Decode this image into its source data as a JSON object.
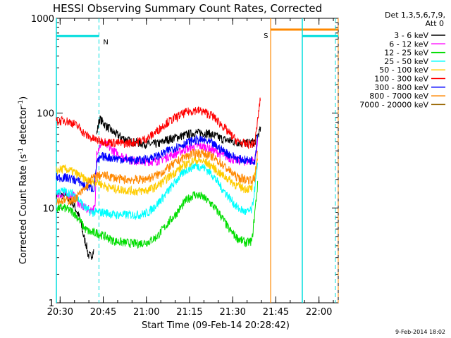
{
  "chart_data": {
    "type": "line",
    "title": "HESSI Observing Summary Count Rates, Corrected",
    "xlabel": "Start Time (09-Feb-14 20:28:42)",
    "ylabel_main": "Corrected Count Rate (s",
    "ylabel_sup1": "-1",
    "ylabel_mid": " detector",
    "ylabel_sup2": "-1",
    "ylabel_end": ")",
    "yscale": "log",
    "ylim": [
      1,
      1000
    ],
    "xlim_minutes": [
      0,
      98
    ],
    "x_unit": "minutes since 20:28:42",
    "x_ticks": [
      {
        "label": "20:30",
        "m": 1.3
      },
      {
        "label": "20:45",
        "m": 16.3
      },
      {
        "label": "21:00",
        "m": 31.3
      },
      {
        "label": "21:15",
        "m": 46.3
      },
      {
        "label": "21:30",
        "m": 61.3
      },
      {
        "label": "21:45",
        "m": 76.3
      },
      {
        "label": "22:00",
        "m": 91.3
      }
    ],
    "y_ticks": [
      {
        "label": "1",
        "v": 1
      },
      {
        "label": "10",
        "v": 10
      },
      {
        "label": "100",
        "v": 100
      },
      {
        "label": "1000",
        "v": 1000
      }
    ],
    "legend_header": [
      "Det 1,3,5,6,7,9,",
      "Att 0"
    ],
    "series": [
      {
        "name": "3 - 6 keV",
        "color": "#000000",
        "segment": [
          0,
          13
        ],
        "values": [
          [
            0,
            14
          ],
          [
            3,
            13.5
          ],
          [
            6,
            11
          ],
          [
            8,
            8
          ],
          [
            9.5,
            5
          ],
          [
            10.5,
            4
          ],
          [
            11,
            3.2
          ],
          [
            12,
            3.1
          ],
          [
            13,
            3.5
          ]
        ]
      },
      {
        "name": "3 - 6 keV",
        "color": "#000000",
        "segment": [
          14,
          71
        ],
        "values": [
          [
            14,
            60
          ],
          [
            15,
            88
          ],
          [
            17,
            75
          ],
          [
            20,
            62
          ],
          [
            23,
            55
          ],
          [
            26,
            50
          ],
          [
            30,
            48
          ],
          [
            33,
            47
          ],
          [
            36,
            48
          ],
          [
            38,
            52
          ],
          [
            41,
            55
          ],
          [
            44,
            58
          ],
          [
            48,
            62
          ],
          [
            52,
            62
          ],
          [
            55,
            58
          ],
          [
            58,
            53
          ],
          [
            62,
            50
          ],
          [
            66,
            48
          ],
          [
            69,
            50
          ],
          [
            71,
            68
          ]
        ]
      },
      {
        "name": "6 - 12 keV",
        "color": "#ff00ff",
        "segment": [
          0,
          70
        ],
        "values": [
          [
            0,
            14
          ],
          [
            3,
            14
          ],
          [
            6,
            13.5
          ],
          [
            8,
            11
          ],
          [
            10,
            10
          ],
          [
            12,
            9.5
          ],
          [
            13.5,
            10
          ],
          [
            14,
            40
          ],
          [
            16,
            50
          ],
          [
            19,
            42
          ],
          [
            22,
            36
          ],
          [
            26,
            32
          ],
          [
            30,
            31
          ],
          [
            34,
            31
          ],
          [
            37,
            33
          ],
          [
            41,
            37
          ],
          [
            45,
            42
          ],
          [
            49,
            45
          ],
          [
            52,
            44
          ],
          [
            55,
            40
          ],
          [
            58,
            36
          ],
          [
            62,
            32
          ],
          [
            66,
            31
          ],
          [
            69,
            32
          ],
          [
            70,
            50
          ]
        ]
      },
      {
        "name": "12 - 25 keV",
        "color": "#00dd00",
        "segment": [
          0,
          70
        ],
        "values": [
          [
            0,
            10
          ],
          [
            3,
            10
          ],
          [
            6,
            9
          ],
          [
            8,
            7.5
          ],
          [
            10,
            6
          ],
          [
            12,
            5.5
          ],
          [
            14,
            5.5
          ],
          [
            17,
            5
          ],
          [
            20,
            4.5
          ],
          [
            24,
            4.3
          ],
          [
            28,
            4.2
          ],
          [
            32,
            4.4
          ],
          [
            35,
            5
          ],
          [
            38,
            6.5
          ],
          [
            42,
            9
          ],
          [
            45,
            12
          ],
          [
            48,
            14
          ],
          [
            51,
            13
          ],
          [
            54,
            11
          ],
          [
            57,
            8.5
          ],
          [
            60,
            6
          ],
          [
            63,
            4.8
          ],
          [
            66,
            4.3
          ],
          [
            68,
            4.5
          ],
          [
            70,
            18
          ]
        ]
      },
      {
        "name": "25 - 50 keV",
        "color": "#00ffff",
        "segment": [
          0,
          70
        ],
        "values": [
          [
            0,
            15
          ],
          [
            3,
            15
          ],
          [
            6,
            14
          ],
          [
            8,
            12
          ],
          [
            10,
            10
          ],
          [
            12,
            9
          ],
          [
            14,
            9
          ],
          [
            17,
            9
          ],
          [
            20,
            8.5
          ],
          [
            23,
            8.5
          ],
          [
            26,
            8.5
          ],
          [
            29,
            8.5
          ],
          [
            32,
            9
          ],
          [
            35,
            11
          ],
          [
            38,
            14
          ],
          [
            42,
            20
          ],
          [
            45,
            25
          ],
          [
            48,
            28
          ],
          [
            51,
            27
          ],
          [
            54,
            23
          ],
          [
            57,
            17
          ],
          [
            60,
            13
          ],
          [
            63,
            10
          ],
          [
            66,
            9
          ],
          [
            68,
            9.5
          ],
          [
            70,
            28
          ]
        ]
      },
      {
        "name": "50 - 100 keV",
        "color": "#ffcc00",
        "segment": [
          0,
          70
        ],
        "values": [
          [
            0,
            25
          ],
          [
            3,
            26
          ],
          [
            6,
            24
          ],
          [
            8,
            22
          ],
          [
            10,
            20
          ],
          [
            12,
            19
          ],
          [
            14,
            19
          ],
          [
            17,
            17
          ],
          [
            20,
            16
          ],
          [
            24,
            15.5
          ],
          [
            28,
            15
          ],
          [
            32,
            15.5
          ],
          [
            35,
            17
          ],
          [
            38,
            20
          ],
          [
            42,
            25
          ],
          [
            45,
            29
          ],
          [
            48,
            32
          ],
          [
            51,
            31
          ],
          [
            54,
            28
          ],
          [
            57,
            23
          ],
          [
            60,
            20
          ],
          [
            63,
            17
          ],
          [
            66,
            16
          ],
          [
            68,
            16
          ],
          [
            70,
            35
          ]
        ]
      },
      {
        "name": "100 - 300 keV",
        "color": "#ff0000",
        "segment": [
          0,
          71
        ],
        "values": [
          [
            0,
            82
          ],
          [
            3,
            84
          ],
          [
            6,
            78
          ],
          [
            8,
            70
          ],
          [
            10,
            60
          ],
          [
            12,
            55
          ],
          [
            14,
            52
          ],
          [
            17,
            50
          ],
          [
            20,
            49
          ],
          [
            24,
            48
          ],
          [
            28,
            50
          ],
          [
            32,
            55
          ],
          [
            35,
            65
          ],
          [
            38,
            78
          ],
          [
            42,
            92
          ],
          [
            45,
            102
          ],
          [
            48,
            108
          ],
          [
            51,
            104
          ],
          [
            54,
            95
          ],
          [
            57,
            78
          ],
          [
            60,
            62
          ],
          [
            63,
            50
          ],
          [
            66,
            47
          ],
          [
            69,
            48
          ],
          [
            71,
            150
          ]
        ]
      },
      {
        "name": "300 - 800 keV",
        "color": "#0000ff",
        "segment": [
          0,
          70
        ],
        "values": [
          [
            0,
            21
          ],
          [
            3,
            21
          ],
          [
            6,
            20
          ],
          [
            8,
            19
          ],
          [
            10,
            17
          ],
          [
            13,
            16
          ],
          [
            14,
            30
          ],
          [
            16,
            35
          ],
          [
            19,
            34
          ],
          [
            22,
            33
          ],
          [
            26,
            32
          ],
          [
            30,
            32
          ],
          [
            33,
            34
          ],
          [
            36,
            36
          ],
          [
            40,
            42
          ],
          [
            44,
            47
          ],
          [
            48,
            52
          ],
          [
            51,
            52
          ],
          [
            54,
            48
          ],
          [
            57,
            42
          ],
          [
            60,
            37
          ],
          [
            63,
            33
          ],
          [
            66,
            32
          ],
          [
            69,
            32
          ],
          [
            70,
            60
          ]
        ]
      },
      {
        "name": "800 - 7000 keV",
        "color": "#ff8800",
        "segment": [
          0,
          70
        ],
        "values": [
          [
            0,
            12
          ],
          [
            3,
            12
          ],
          [
            6,
            12
          ],
          [
            8,
            14
          ],
          [
            10,
            16
          ],
          [
            12,
            20
          ],
          [
            14,
            22
          ],
          [
            17,
            22
          ],
          [
            20,
            21
          ],
          [
            23,
            20
          ],
          [
            26,
            20
          ],
          [
            30,
            20
          ],
          [
            33,
            21
          ],
          [
            36,
            23
          ],
          [
            40,
            28
          ],
          [
            44,
            34
          ],
          [
            48,
            38
          ],
          [
            51,
            38
          ],
          [
            54,
            35
          ],
          [
            57,
            30
          ],
          [
            60,
            25
          ],
          [
            63,
            21
          ],
          [
            66,
            20
          ],
          [
            69,
            20
          ],
          [
            70,
            40
          ]
        ]
      },
      {
        "name": "7000 - 20000 keV",
        "color": "#996600",
        "segment": [
          0,
          0
        ],
        "values": []
      }
    ],
    "markers": [
      {
        "label": "N",
        "color": "#00dddd",
        "start": 0,
        "end": 14.8,
        "level": 650
      },
      {
        "label": "S",
        "color": "#ff8800",
        "start": 74.5,
        "end": 98,
        "level": 760
      }
    ],
    "extra_cyan": {
      "start": 85.5,
      "end": 98,
      "level": 650
    },
    "footer": "9-Feb-2014 18:02"
  }
}
